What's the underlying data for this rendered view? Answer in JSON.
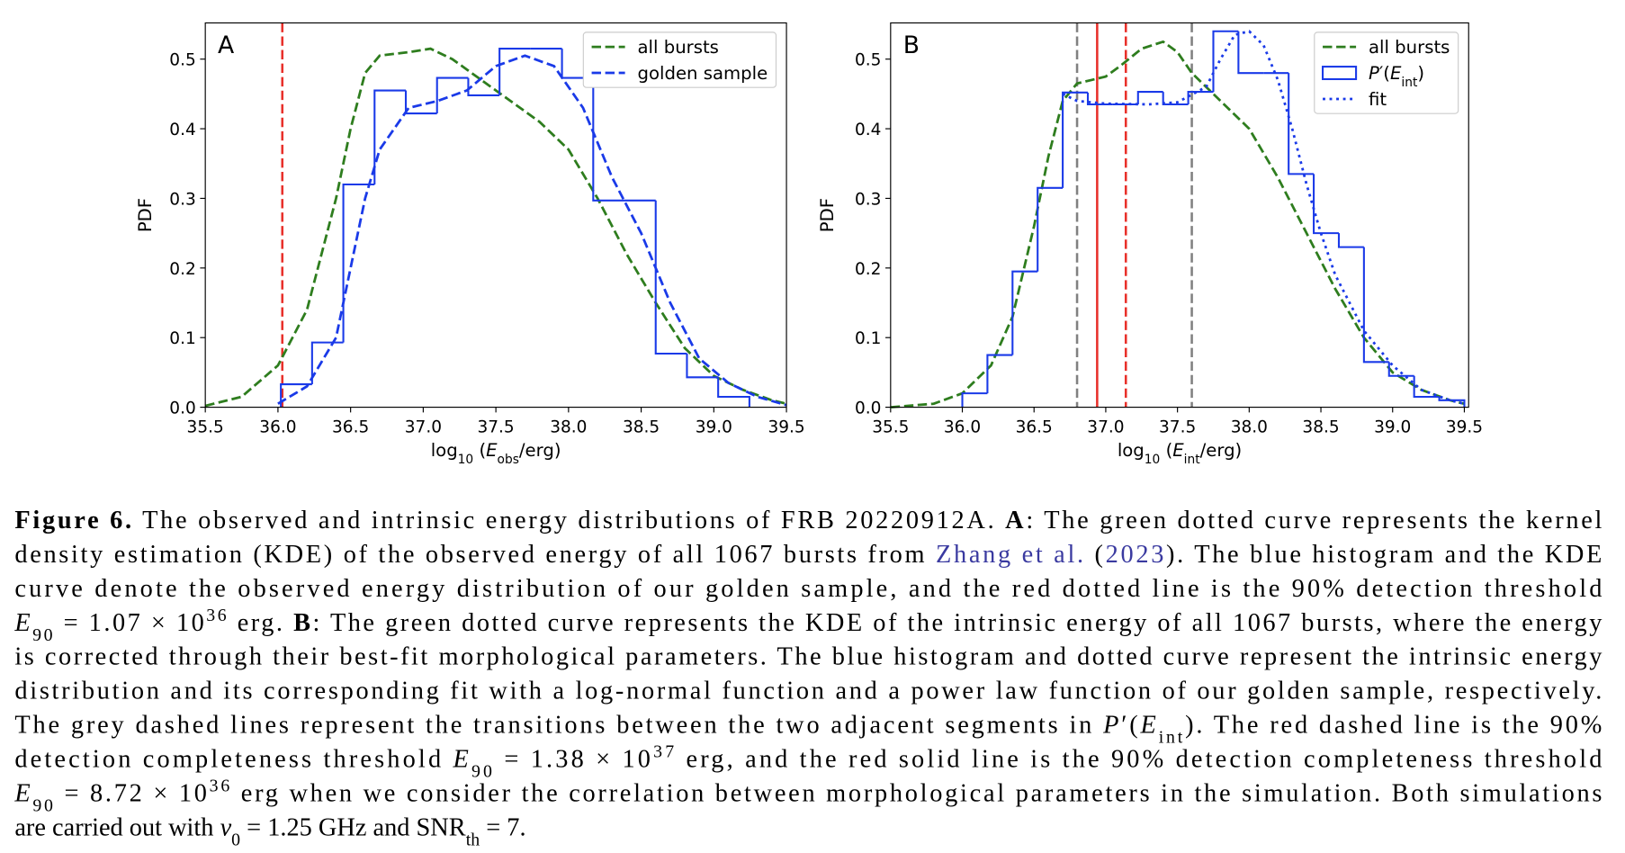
{
  "chart_data": [
    {
      "type": "histogram",
      "panel_label": "A",
      "ylabel": "PDF",
      "xlabel": [
        "log",
        {
          "text": "10",
          "style": "sub"
        },
        " (",
        {
          "text": "E",
          "style": "italic"
        },
        {
          "text": "obs",
          "style": "sub"
        },
        "/erg)"
      ],
      "xlim": [
        35.5,
        39.5
      ],
      "ylim": [
        0,
        0.552
      ],
      "legend": "upper right",
      "xticks": [
        35.5,
        {
          "value": 36,
          "label": "36.0"
        },
        36.5,
        {
          "value": 37,
          "label": "37.0"
        },
        37.5,
        {
          "value": 38,
          "label": "38.0"
        },
        38.5,
        {
          "value": 39,
          "label": "39.0"
        },
        39.5
      ],
      "yticks": [
        {
          "value": 0,
          "label": "0.0"
        },
        0.1,
        0.2,
        0.3,
        0.4,
        0.5
      ],
      "vlines": [
        {
          "x": 36.03,
          "color": "#e8302a",
          "line": "dashed"
        }
      ],
      "series": [
        {
          "name": "all bursts",
          "color": "#2e7d1e",
          "line": "dashed",
          "x": [
            35.5,
            35.75,
            36.0,
            36.2,
            36.4,
            36.5,
            36.6,
            36.7,
            36.9,
            37.05,
            37.2,
            37.4,
            37.6,
            37.8,
            38.0,
            38.2,
            38.4,
            38.6,
            38.8,
            39.0,
            39.2,
            39.4,
            39.5
          ],
          "values": [
            0.002,
            0.015,
            0.06,
            0.14,
            0.3,
            0.4,
            0.48,
            0.505,
            0.51,
            0.515,
            0.5,
            0.47,
            0.44,
            0.41,
            0.37,
            0.3,
            0.22,
            0.15,
            0.085,
            0.045,
            0.025,
            0.01,
            0.005
          ]
        },
        {
          "name": "golden sample",
          "color": "#1a3ae8",
          "line": "dashed",
          "x": [
            36.0,
            36.2,
            36.4,
            36.5,
            36.6,
            36.7,
            36.9,
            37.1,
            37.3,
            37.5,
            37.7,
            37.9,
            38.1,
            38.3,
            38.5,
            38.7,
            38.9,
            39.1,
            39.3,
            39.5
          ],
          "values": [
            0.005,
            0.03,
            0.1,
            0.2,
            0.3,
            0.37,
            0.43,
            0.44,
            0.455,
            0.49,
            0.505,
            0.49,
            0.43,
            0.33,
            0.25,
            0.15,
            0.07,
            0.035,
            0.015,
            0.003
          ]
        },
        {
          "color": "#1a3ae8",
          "line": "solid",
          "bins": [
            36.02,
            36.235,
            36.45,
            36.665,
            36.88,
            37.095,
            37.31,
            37.525,
            37.74,
            37.955,
            38.17,
            38.385,
            38.6,
            38.815,
            39.03,
            39.245
          ],
          "values": [
            0.033,
            0.093,
            0.32,
            0.455,
            0.422,
            0.473,
            0.448,
            0.515,
            0.515,
            0.473,
            0.297,
            0.297,
            0.077,
            0.043,
            0.015
          ]
        }
      ]
    },
    {
      "type": "histogram",
      "panel_label": "B",
      "ylabel": "PDF",
      "xlabel": [
        "log",
        {
          "text": "10",
          "style": "sub"
        },
        " (",
        {
          "text": "E",
          "style": "italic"
        },
        {
          "text": "int",
          "style": "sub"
        },
        "/erg)"
      ],
      "xlim": [
        35.5,
        39.53
      ],
      "ylim": [
        0,
        0.552
      ],
      "legend": "upper right",
      "xticks": [
        35.5,
        {
          "value": 36,
          "label": "36.0"
        },
        36.5,
        {
          "value": 37,
          "label": "37.0"
        },
        37.5,
        {
          "value": 38,
          "label": "38.0"
        },
        38.5,
        {
          "value": 39,
          "label": "39.0"
        },
        39.5
      ],
      "yticks": [
        {
          "value": 0,
          "label": "0.0"
        },
        0.1,
        0.2,
        0.3,
        0.4,
        0.5
      ],
      "vlines": [
        {
          "x": 36.8,
          "color": "#808080",
          "line": "dashed"
        },
        {
          "x": 36.94,
          "color": "#e8302a",
          "line": "solid"
        },
        {
          "x": 37.14,
          "color": "#e8302a",
          "line": "dashed"
        },
        {
          "x": 37.6,
          "color": "#808080",
          "line": "dashed"
        }
      ],
      "series": [
        {
          "name": "all bursts",
          "color": "#2e7d1e",
          "line": "dashed",
          "x": [
            35.5,
            35.8,
            36.0,
            36.2,
            36.35,
            36.5,
            36.6,
            36.7,
            36.8,
            36.9,
            37.0,
            37.1,
            37.25,
            37.4,
            37.5,
            37.6,
            37.8,
            38.0,
            38.2,
            38.4,
            38.6,
            38.8,
            39.0,
            39.2,
            39.4,
            39.5
          ],
          "values": [
            0,
            0.005,
            0.02,
            0.06,
            0.13,
            0.26,
            0.36,
            0.44,
            0.465,
            0.47,
            0.475,
            0.49,
            0.515,
            0.525,
            0.51,
            0.48,
            0.44,
            0.4,
            0.33,
            0.25,
            0.17,
            0.1,
            0.05,
            0.025,
            0.01,
            0.005
          ]
        },
        {
          "name": [
            {
              "text": "P",
              "style": "italic"
            },
            "′(",
            {
              "text": "E",
              "style": "italic"
            },
            {
              "text": "int",
              "style": "sub"
            },
            ")"
          ],
          "color": "#1a3ae8",
          "line": "solid",
          "bins": [
            36.0,
            36.175,
            36.35,
            36.525,
            36.7,
            36.875,
            37.05,
            37.225,
            37.4,
            37.575,
            37.75,
            37.925,
            38.1,
            38.275,
            38.45,
            38.625,
            38.8,
            38.975,
            39.15,
            39.325,
            39.5
          ],
          "values": [
            0.02,
            0.075,
            0.195,
            0.315,
            0.452,
            0.435,
            0.435,
            0.453,
            0.435,
            0.453,
            0.54,
            0.48,
            0.48,
            0.335,
            0.25,
            0.23,
            0.065,
            0.045,
            0.015,
            0.01
          ]
        },
        {
          "name": "fit",
          "color": "#1a3ae8",
          "line": "dotted",
          "x": [
            36.7,
            36.8,
            37.0,
            37.3,
            37.5,
            37.7,
            37.8,
            37.9,
            38.0,
            38.1,
            38.2,
            38.3,
            38.4,
            38.5,
            38.6,
            38.8,
            39.0,
            39.2,
            39.4,
            39.5
          ],
          "values": [
            0.45,
            0.44,
            0.436,
            0.435,
            0.438,
            0.46,
            0.5,
            0.535,
            0.54,
            0.52,
            0.47,
            0.4,
            0.32,
            0.25,
            0.19,
            0.11,
            0.06,
            0.025,
            0.01,
            0.005
          ]
        }
      ]
    }
  ],
  "caption": {
    "lines": [
      [
        {
          "text": "Figure 6.",
          "style": "bold"
        },
        " The observed and intrinsic energy distributions of FRB 20220912A. ",
        {
          "text": "A",
          "style": "bold"
        },
        ": The green dotted curve represents the kernel"
      ],
      [
        "density estimation (KDE) of the observed energy of all 1067 bursts from ",
        {
          "text": "Zhang et al.",
          "style": "link"
        },
        " (",
        {
          "text": "2023",
          "style": "link"
        },
        "). The blue histogram and the KDE"
      ],
      [
        "curve denote the observed energy distribution of our golden sample, and the red dotted line is the 90% detection threshold"
      ],
      [
        {
          "text": "E",
          "style": "italic"
        },
        {
          "text": "90",
          "style": "sub"
        },
        " = 1.07 × 10",
        {
          "text": "36",
          "style": "sup"
        },
        " erg. ",
        {
          "text": "B",
          "style": "bold"
        },
        ": The green dotted curve represents the KDE of the intrinsic energy of all 1067 bursts, where the energy"
      ],
      [
        "is corrected through their best-fit morphological parameters. The blue histogram and dotted curve represent the intrinsic energy"
      ],
      [
        "distribution and its corresponding fit with a log-normal function and a power law function of our golden sample, respectively."
      ],
      [
        "The grey dashed lines represent the transitions between the two adjacent segments in ",
        {
          "text": "P",
          "style": "italic"
        },
        "′(",
        {
          "text": "E",
          "style": "italic"
        },
        {
          "text": "int",
          "style": "sub"
        },
        "). The red dashed line is the 90%"
      ],
      [
        "detection completeness threshold ",
        {
          "text": "E",
          "style": "italic"
        },
        {
          "text": "90",
          "style": "sub"
        },
        " = 1.38 × 10",
        {
          "text": "37",
          "style": "sup"
        },
        " erg, and the red solid line is the 90% detection completeness threshold"
      ],
      [
        {
          "text": "E",
          "style": "italic"
        },
        {
          "text": "90",
          "style": "sub"
        },
        " = 8.72 × 10",
        {
          "text": "36",
          "style": "sup"
        },
        " erg when we consider the correlation between morphological parameters in the simulation. Both simulations"
      ],
      [
        "are carried out with ",
        {
          "text": "ν",
          "style": "italic"
        },
        {
          "text": "0",
          "style": "sub"
        },
        " = 1.25 GHz and SNR",
        {
          "text": "th",
          "style": "sub"
        },
        " = 7."
      ]
    ]
  }
}
